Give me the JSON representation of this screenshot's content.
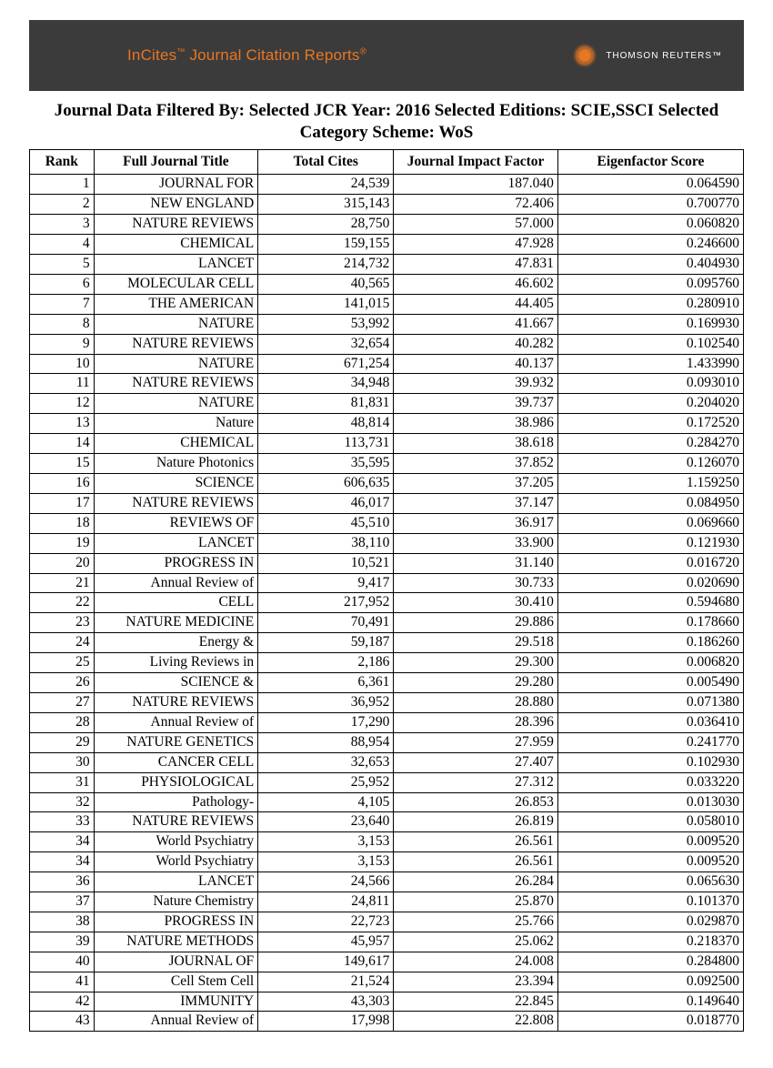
{
  "banner": {
    "brand_prefix": "InCites",
    "brand_tm": "™",
    "brand_rest": " Journal Citation Reports",
    "brand_reg": "®",
    "tr_label": "THOMSON REUTERS™",
    "bg_color": "#3b3b3b",
    "brand_color": "#e87722",
    "tr_text_color": "#ffffff"
  },
  "heading": {
    "line1": "Journal Data Filtered By:  Selected JCR Year: 2016 Selected Editions: SCIE,SSCI Selected",
    "line2": "Category Scheme: WoS"
  },
  "table": {
    "columns": [
      "Rank",
      "Full Journal Title",
      "Total Cites",
      "Journal Impact Factor",
      "Eigenfactor Score"
    ],
    "rows": [
      {
        "rank": "1",
        "title": "JOURNAL FOR",
        "cites": "24,539",
        "if": "187.040",
        "eig": "0.064590"
      },
      {
        "rank": "2",
        "title": "NEW ENGLAND",
        "cites": "315,143",
        "if": "72.406",
        "eig": "0.700770"
      },
      {
        "rank": "3",
        "title": "NATURE REVIEWS",
        "cites": "28,750",
        "if": "57.000",
        "eig": "0.060820"
      },
      {
        "rank": "4",
        "title": "CHEMICAL",
        "cites": "159,155",
        "if": "47.928",
        "eig": "0.246600"
      },
      {
        "rank": "5",
        "title": "LANCET",
        "cites": "214,732",
        "if": "47.831",
        "eig": "0.404930"
      },
      {
        "rank": "6",
        "title": "MOLECULAR CELL",
        "cites": "40,565",
        "if": "46.602",
        "eig": "0.095760"
      },
      {
        "rank": "7",
        "title": "THE AMERICAN",
        "cites": "141,015",
        "if": "44.405",
        "eig": "0.280910"
      },
      {
        "rank": "8",
        "title": "NATURE",
        "cites": "53,992",
        "if": "41.667",
        "eig": "0.169930"
      },
      {
        "rank": "9",
        "title": "NATURE REVIEWS",
        "cites": "32,654",
        "if": "40.282",
        "eig": "0.102540"
      },
      {
        "rank": "10",
        "title": "NATURE",
        "cites": "671,254",
        "if": "40.137",
        "eig": "1.433990"
      },
      {
        "rank": "11",
        "title": "NATURE REVIEWS",
        "cites": "34,948",
        "if": "39.932",
        "eig": "0.093010"
      },
      {
        "rank": "12",
        "title": "NATURE",
        "cites": "81,831",
        "if": "39.737",
        "eig": "0.204020"
      },
      {
        "rank": "13",
        "title": "Nature",
        "cites": "48,814",
        "if": "38.986",
        "eig": "0.172520"
      },
      {
        "rank": "14",
        "title": "CHEMICAL",
        "cites": "113,731",
        "if": "38.618",
        "eig": "0.284270"
      },
      {
        "rank": "15",
        "title": "Nature Photonics",
        "cites": "35,595",
        "if": "37.852",
        "eig": "0.126070"
      },
      {
        "rank": "16",
        "title": "SCIENCE",
        "cites": "606,635",
        "if": "37.205",
        "eig": "1.159250"
      },
      {
        "rank": "17",
        "title": "NATURE REVIEWS",
        "cites": "46,017",
        "if": "37.147",
        "eig": "0.084950"
      },
      {
        "rank": "18",
        "title": "REVIEWS OF",
        "cites": "45,510",
        "if": "36.917",
        "eig": "0.069660"
      },
      {
        "rank": "19",
        "title": "LANCET",
        "cites": "38,110",
        "if": "33.900",
        "eig": "0.121930"
      },
      {
        "rank": "20",
        "title": "PROGRESS IN",
        "cites": "10,521",
        "if": "31.140",
        "eig": "0.016720"
      },
      {
        "rank": "21",
        "title": "Annual Review of",
        "cites": "9,417",
        "if": "30.733",
        "eig": "0.020690"
      },
      {
        "rank": "22",
        "title": "CELL",
        "cites": "217,952",
        "if": "30.410",
        "eig": "0.594680"
      },
      {
        "rank": "23",
        "title": "NATURE MEDICINE",
        "cites": "70,491",
        "if": "29.886",
        "eig": "0.178660"
      },
      {
        "rank": "24",
        "title": "Energy &",
        "cites": "59,187",
        "if": "29.518",
        "eig": "0.186260"
      },
      {
        "rank": "25",
        "title": "Living Reviews in",
        "cites": "2,186",
        "if": "29.300",
        "eig": "0.006820"
      },
      {
        "rank": "26",
        "title": "SCIENCE &",
        "cites": "6,361",
        "if": "29.280",
        "eig": "0.005490"
      },
      {
        "rank": "27",
        "title": "NATURE REVIEWS",
        "cites": "36,952",
        "if": "28.880",
        "eig": "0.071380"
      },
      {
        "rank": "28",
        "title": "Annual Review of",
        "cites": "17,290",
        "if": "28.396",
        "eig": "0.036410"
      },
      {
        "rank": "29",
        "title": "NATURE GENETICS",
        "cites": "88,954",
        "if": "27.959",
        "eig": "0.241770"
      },
      {
        "rank": "30",
        "title": "CANCER CELL",
        "cites": "32,653",
        "if": "27.407",
        "eig": "0.102930"
      },
      {
        "rank": "31",
        "title": "PHYSIOLOGICAL",
        "cites": "25,952",
        "if": "27.312",
        "eig": "0.033220"
      },
      {
        "rank": "32",
        "title": "Pathology-",
        "cites": "4,105",
        "if": "26.853",
        "eig": "0.013030"
      },
      {
        "rank": "33",
        "title": "NATURE REVIEWS",
        "cites": "23,640",
        "if": "26.819",
        "eig": "0.058010"
      },
      {
        "rank": "34",
        "title": "World Psychiatry",
        "cites": "3,153",
        "if": "26.561",
        "eig": "0.009520"
      },
      {
        "rank": "34",
        "title": "World Psychiatry",
        "cites": "3,153",
        "if": "26.561",
        "eig": "0.009520"
      },
      {
        "rank": "36",
        "title": "LANCET",
        "cites": "24,566",
        "if": "26.284",
        "eig": "0.065630"
      },
      {
        "rank": "37",
        "title": "Nature Chemistry",
        "cites": "24,811",
        "if": "25.870",
        "eig": "0.101370"
      },
      {
        "rank": "38",
        "title": "PROGRESS IN",
        "cites": "22,723",
        "if": "25.766",
        "eig": "0.029870"
      },
      {
        "rank": "39",
        "title": "NATURE METHODS",
        "cites": "45,957",
        "if": "25.062",
        "eig": "0.218370"
      },
      {
        "rank": "40",
        "title": "JOURNAL OF",
        "cites": "149,617",
        "if": "24.008",
        "eig": "0.284800"
      },
      {
        "rank": "41",
        "title": "Cell Stem Cell",
        "cites": "21,524",
        "if": "23.394",
        "eig": "0.092500"
      },
      {
        "rank": "42",
        "title": "IMMUNITY",
        "cites": "43,303",
        "if": "22.845",
        "eig": "0.149640"
      },
      {
        "rank": "43",
        "title": "Annual Review of",
        "cites": "17,998",
        "if": "22.808",
        "eig": "0.018770"
      }
    ]
  }
}
